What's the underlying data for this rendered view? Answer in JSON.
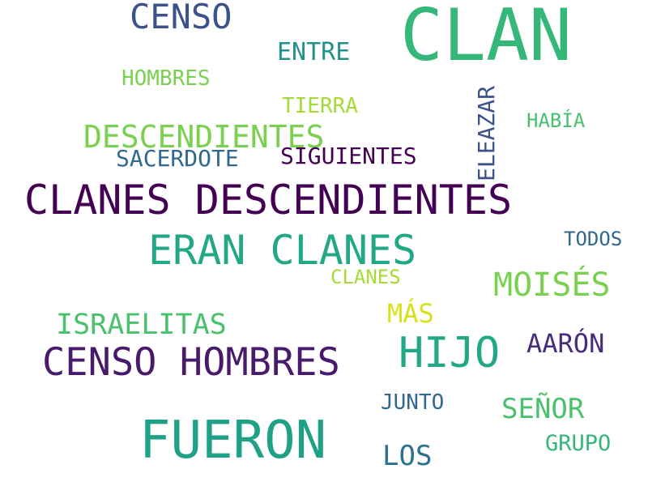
{
  "word_cloud": {
    "background": "#ffffff",
    "words": [
      {
        "id": "clan",
        "text": "CLAN",
        "color": "#35b779"
      },
      {
        "id": "censo",
        "text": "CENSO",
        "color": "#3b528b"
      },
      {
        "id": "entre",
        "text": "ENTRE",
        "color": "#21918c"
      },
      {
        "id": "hombres",
        "text": "HOMBRES",
        "color": "#7ad151"
      },
      {
        "id": "tierra",
        "text": "TIERRA",
        "color": "#a5db36"
      },
      {
        "id": "habia",
        "text": "HABÍA",
        "color": "#4ac16d"
      },
      {
        "id": "descendientes",
        "text": "DESCENDIENTES",
        "color": "#7ad151"
      },
      {
        "id": "sacerdote",
        "text": "SACERDOTE",
        "color": "#31688e"
      },
      {
        "id": "siguientes",
        "text": "SIGUIENTES",
        "color": "#440154"
      },
      {
        "id": "eleazar",
        "text": "ELEAZAR",
        "color": "#3b528b",
        "orientation": "vertical"
      },
      {
        "id": "clanes_descendientes",
        "text": "CLANES DESCENDIENTES",
        "color": "#440154"
      },
      {
        "id": "todos",
        "text": "TODOS",
        "color": "#31688e"
      },
      {
        "id": "eran_clanes",
        "text": "ERAN CLANES",
        "color": "#22a884"
      },
      {
        "id": "clanes",
        "text": "CLANES",
        "color": "#a5db36"
      },
      {
        "id": "moises",
        "text": "MOISÉS",
        "color": "#7ad151"
      },
      {
        "id": "mas",
        "text": "MÁS",
        "color": "#d8e219"
      },
      {
        "id": "israelitas",
        "text": "ISRAELITAS",
        "color": "#4ac16d"
      },
      {
        "id": "aaron",
        "text": "AARÓN",
        "color": "#472d7b"
      },
      {
        "id": "hijo",
        "text": "HIJO",
        "color": "#22a884"
      },
      {
        "id": "censo_hombres",
        "text": "CENSO HOMBRES",
        "color": "#481a6c"
      },
      {
        "id": "junto",
        "text": "JUNTO",
        "color": "#31688e"
      },
      {
        "id": "senor",
        "text": "SEÑOR",
        "color": "#4ac16d"
      },
      {
        "id": "fueron",
        "text": "FUERON",
        "color": "#1fa187"
      },
      {
        "id": "grupo",
        "text": "GRUPO",
        "color": "#35b779"
      },
      {
        "id": "los",
        "text": "LOS",
        "color": "#2c728e"
      }
    ]
  }
}
